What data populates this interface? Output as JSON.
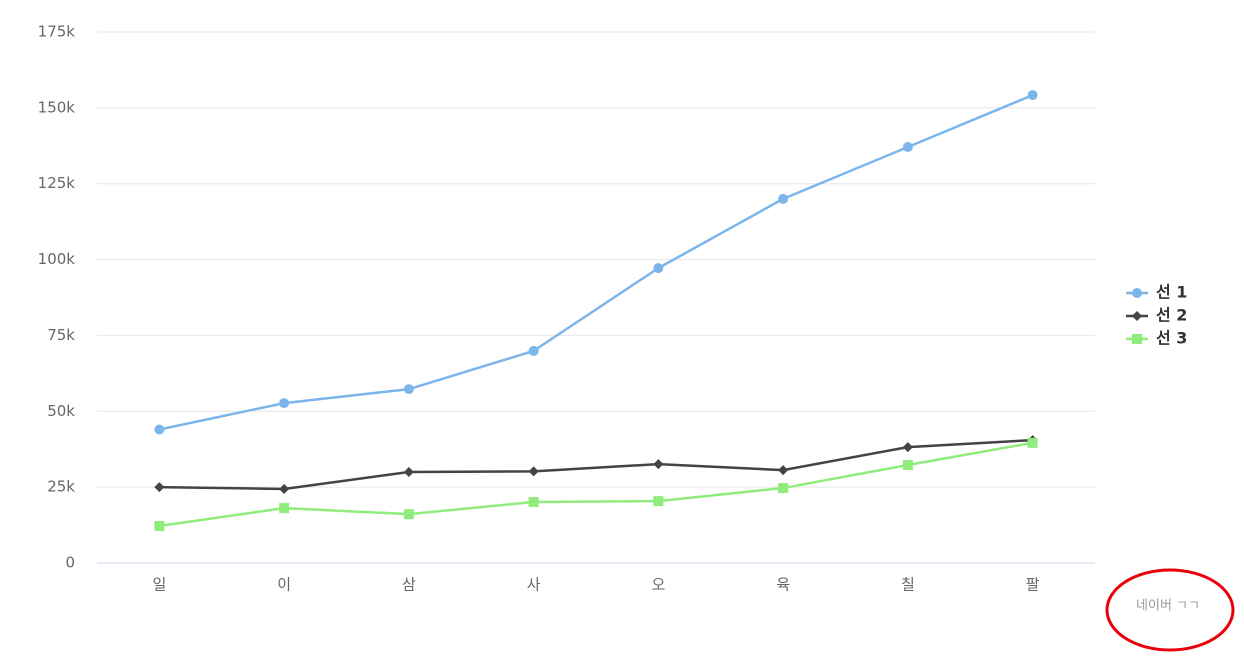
{
  "chart_data": {
    "type": "line",
    "categories": [
      "일",
      "이",
      "삼",
      "사",
      "오",
      "육",
      "칠",
      "팔"
    ],
    "series": [
      {
        "name": "선 1",
        "color": "#7cb5ec",
        "marker": "circle",
        "values": [
          44000,
          52700,
          57300,
          69900,
          97200,
          120000,
          137100,
          154200
        ]
      },
      {
        "name": "선 2",
        "color": "#434348",
        "marker": "diamond",
        "values": [
          25000,
          24400,
          30000,
          30200,
          32600,
          30600,
          38200,
          40500
        ]
      },
      {
        "name": "선 3",
        "color": "#90ed7d",
        "marker": "square",
        "values": [
          12200,
          18100,
          16100,
          20100,
          20400,
          24700,
          32300,
          39600
        ]
      }
    ],
    "ylim": [
      0,
      175000
    ],
    "yticks": [
      0,
      {
        "value": 25000,
        "label": "25k"
      },
      {
        "value": 50000,
        "label": "50k"
      },
      {
        "value": 75000,
        "label": "75k"
      },
      {
        "value": 100000,
        "label": "100k"
      },
      {
        "value": 125000,
        "label": "125k"
      },
      {
        "value": 150000,
        "label": "150k"
      },
      {
        "value": 175000,
        "label": "175k"
      }
    ],
    "grid": true,
    "legend": "right",
    "annotation": "네이버 ㄱㄱ"
  }
}
